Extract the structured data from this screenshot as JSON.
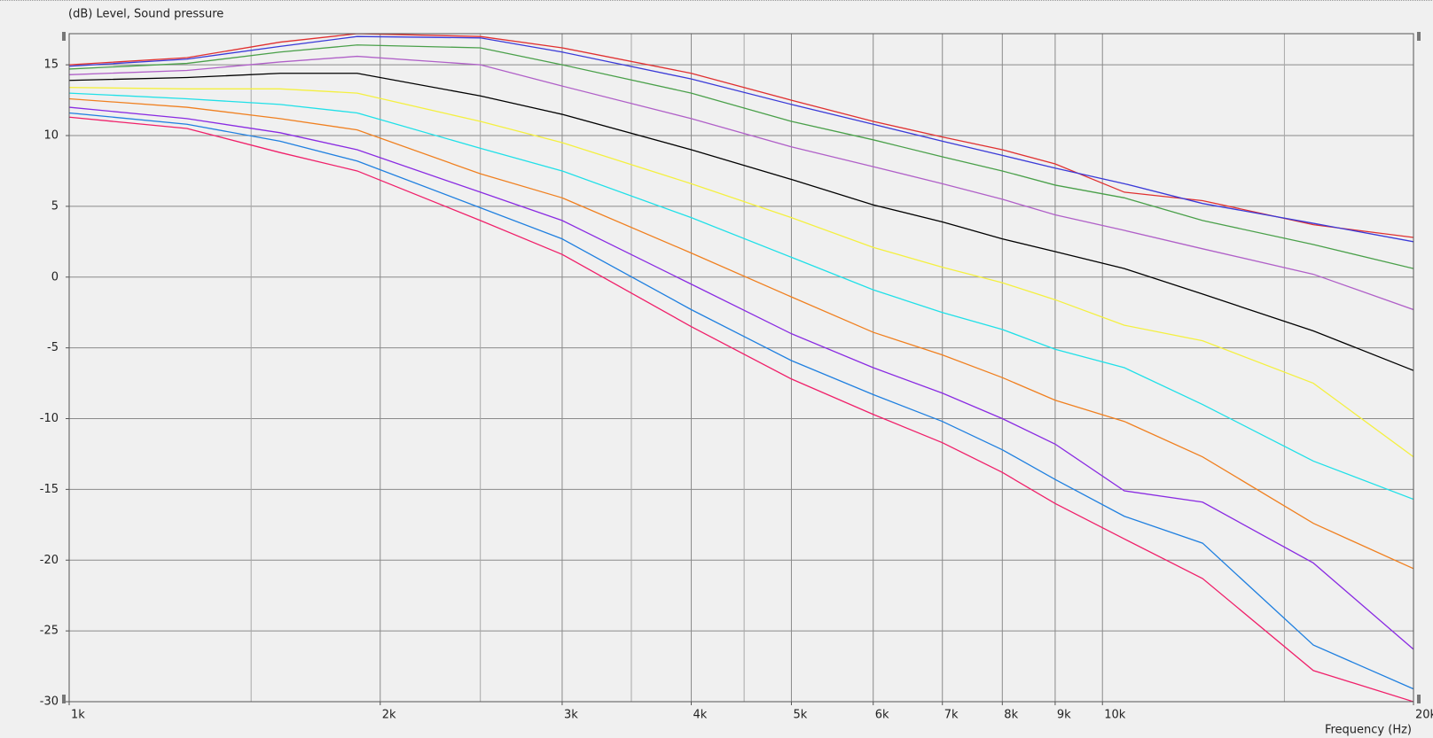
{
  "chart_data": {
    "type": "line",
    "title": "(dB)  Level, Sound pressure",
    "x_label": "Frequency  (Hz)",
    "x_scale": "log",
    "grid": true,
    "x": [
      1000,
      1300,
      1600,
      1900,
      2500,
      3000,
      4000,
      5000,
      6000,
      7000,
      8000,
      9000,
      10500,
      12500,
      16000,
      20000
    ],
    "xlim": [
      1000,
      20000
    ],
    "xticks": [
      {
        "value": 1000,
        "label": "1k"
      },
      {
        "value": 2000,
        "label": "2k"
      },
      {
        "value": 3000,
        "label": "3k"
      },
      {
        "value": 4000,
        "label": "4k"
      },
      {
        "value": 5000,
        "label": "5k"
      },
      {
        "value": 6000,
        "label": "6k"
      },
      {
        "value": 7000,
        "label": "7k"
      },
      {
        "value": 8000,
        "label": "8k"
      },
      {
        "value": 9000,
        "label": "9k"
      },
      {
        "value": 10000,
        "label": "10k"
      },
      {
        "value": 20000,
        "label": "20k"
      }
    ],
    "minor_xticks": [
      1500,
      2500,
      3500,
      4500,
      15000
    ],
    "ylim": [
      -30,
      17.2
    ],
    "yticks": [
      -30,
      -25,
      -20,
      -15,
      -10,
      -5,
      0,
      5,
      10,
      15
    ],
    "series": [
      {
        "color": "#e03030",
        "values": [
          15.0,
          15.5,
          16.6,
          17.2,
          17.0,
          16.2,
          14.4,
          12.5,
          11.0,
          9.9,
          9.0,
          8.0,
          6.0,
          5.4,
          3.7,
          2.8
        ]
      },
      {
        "color": "#3a3ad8",
        "values": [
          14.9,
          15.4,
          16.3,
          17.0,
          16.9,
          15.9,
          14.0,
          12.2,
          10.8,
          9.6,
          8.6,
          7.7,
          6.6,
          5.2,
          3.8,
          2.5
        ]
      },
      {
        "color": "#4aa04a",
        "values": [
          14.7,
          15.1,
          15.9,
          16.4,
          16.2,
          15.0,
          13.0,
          11.0,
          9.7,
          8.5,
          7.5,
          6.5,
          5.6,
          4.0,
          2.3,
          0.6
        ]
      },
      {
        "color": "#b060c8",
        "values": [
          14.3,
          14.6,
          15.2,
          15.6,
          15.0,
          13.5,
          11.2,
          9.2,
          7.8,
          6.6,
          5.5,
          4.4,
          3.3,
          2.0,
          0.2,
          -2.3
        ]
      },
      {
        "color": "#000000",
        "values": [
          13.9,
          14.1,
          14.4,
          14.4,
          12.8,
          11.5,
          9.0,
          6.9,
          5.1,
          3.9,
          2.7,
          1.8,
          0.6,
          -1.2,
          -3.8,
          -6.6
        ]
      },
      {
        "color": "#f4f040",
        "values": [
          13.4,
          13.3,
          13.3,
          13.0,
          11.0,
          9.5,
          6.6,
          4.2,
          2.1,
          0.7,
          -0.4,
          -1.6,
          -3.4,
          -4.5,
          -7.5,
          -12.7
        ]
      },
      {
        "color": "#20e0e8",
        "values": [
          13.0,
          12.6,
          12.2,
          11.6,
          9.1,
          7.5,
          4.2,
          1.4,
          -0.9,
          -2.5,
          -3.7,
          -5.1,
          -6.4,
          -9.0,
          -13.0,
          -15.7
        ]
      },
      {
        "color": "#f08020",
        "values": [
          12.6,
          12.0,
          11.2,
          10.4,
          7.3,
          5.6,
          1.7,
          -1.4,
          -3.9,
          -5.5,
          -7.1,
          -8.7,
          -10.2,
          -12.7,
          -17.4,
          -20.6
        ]
      },
      {
        "color": "#8a2be2",
        "values": [
          12.0,
          11.2,
          10.2,
          9.0,
          6.0,
          4.0,
          -0.5,
          -4.0,
          -6.4,
          -8.2,
          -10.0,
          -11.8,
          -15.1,
          -15.9,
          -20.2,
          -26.3
        ]
      },
      {
        "color": "#2080e0",
        "values": [
          11.6,
          10.8,
          9.6,
          8.2,
          4.9,
          2.7,
          -2.3,
          -5.9,
          -8.3,
          -10.2,
          -12.2,
          -14.3,
          -16.9,
          -18.8,
          -26.0,
          -29.1
        ]
      },
      {
        "color": "#f0206a",
        "values": [
          11.3,
          10.5,
          8.8,
          7.5,
          4.0,
          1.6,
          -3.5,
          -7.2,
          -9.7,
          -11.7,
          -13.8,
          -16.0,
          -18.5,
          -21.3,
          -27.8,
          -30.0
        ]
      }
    ]
  }
}
